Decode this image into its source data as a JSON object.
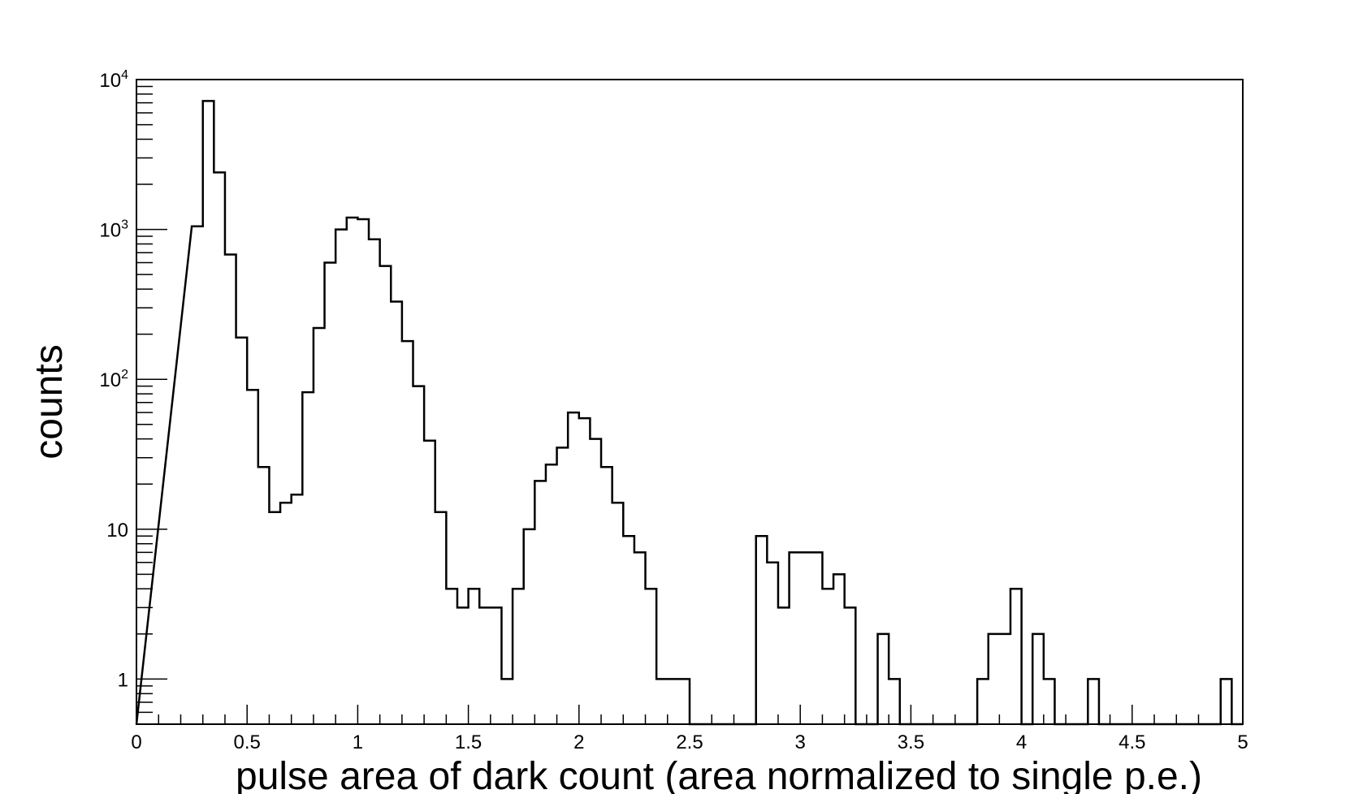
{
  "chart_data": {
    "type": "histogram",
    "xlabel": "pulse area of dark count (area normalized to single p.e.)",
    "ylabel": "counts",
    "xlim": [
      0,
      5
    ],
    "ylim": [
      0.5,
      10000
    ],
    "y_scale": "log",
    "bin_width": 0.05,
    "grid": false,
    "x_tick_labels": [
      "0",
      "0.5",
      "1",
      "1.5",
      "2",
      "2.5",
      "3",
      "3.5",
      "4",
      "4.5",
      "5"
    ],
    "y_ticks": [
      {
        "value": 1,
        "base": "1",
        "exp": ""
      },
      {
        "value": 10,
        "base": "10",
        "exp": ""
      },
      {
        "value": 100,
        "base": "10",
        "exp": "2"
      },
      {
        "value": 1000,
        "base": "10",
        "exp": "3"
      },
      {
        "value": 10000,
        "base": "10",
        "exp": "4"
      }
    ],
    "bins": [
      {
        "x": 0.25,
        "y": 1050
      },
      {
        "x": 0.3,
        "y": 7200
      },
      {
        "x": 0.35,
        "y": 2400
      },
      {
        "x": 0.4,
        "y": 680
      },
      {
        "x": 0.45,
        "y": 190
      },
      {
        "x": 0.5,
        "y": 85
      },
      {
        "x": 0.55,
        "y": 26
      },
      {
        "x": 0.6,
        "y": 13
      },
      {
        "x": 0.65,
        "y": 15
      },
      {
        "x": 0.7,
        "y": 17
      },
      {
        "x": 0.75,
        "y": 82
      },
      {
        "x": 0.8,
        "y": 220
      },
      {
        "x": 0.85,
        "y": 600
      },
      {
        "x": 0.9,
        "y": 1000
      },
      {
        "x": 0.95,
        "y": 1200
      },
      {
        "x": 1.0,
        "y": 1170
      },
      {
        "x": 1.05,
        "y": 860
      },
      {
        "x": 1.1,
        "y": 570
      },
      {
        "x": 1.15,
        "y": 330
      },
      {
        "x": 1.2,
        "y": 180
      },
      {
        "x": 1.25,
        "y": 90
      },
      {
        "x": 1.3,
        "y": 39
      },
      {
        "x": 1.35,
        "y": 13
      },
      {
        "x": 1.4,
        "y": 4
      },
      {
        "x": 1.45,
        "y": 3
      },
      {
        "x": 1.5,
        "y": 4
      },
      {
        "x": 1.55,
        "y": 3
      },
      {
        "x": 1.6,
        "y": 3
      },
      {
        "x": 1.65,
        "y": 1
      },
      {
        "x": 1.7,
        "y": 4
      },
      {
        "x": 1.75,
        "y": 10
      },
      {
        "x": 1.8,
        "y": 21
      },
      {
        "x": 1.85,
        "y": 27
      },
      {
        "x": 1.9,
        "y": 35
      },
      {
        "x": 1.95,
        "y": 60
      },
      {
        "x": 2.0,
        "y": 55
      },
      {
        "x": 2.05,
        "y": 40
      },
      {
        "x": 2.1,
        "y": 26
      },
      {
        "x": 2.15,
        "y": 15
      },
      {
        "x": 2.2,
        "y": 9
      },
      {
        "x": 2.25,
        "y": 7
      },
      {
        "x": 2.3,
        "y": 4
      },
      {
        "x": 2.35,
        "y": 1
      },
      {
        "x": 2.4,
        "y": 1
      },
      {
        "x": 2.45,
        "y": 1
      },
      {
        "x": 2.5,
        "y": 0
      },
      {
        "x": 2.55,
        "y": 0
      },
      {
        "x": 2.6,
        "y": 0
      },
      {
        "x": 2.65,
        "y": 0
      },
      {
        "x": 2.7,
        "y": 0
      },
      {
        "x": 2.75,
        "y": 0
      },
      {
        "x": 2.8,
        "y": 9
      },
      {
        "x": 2.85,
        "y": 6
      },
      {
        "x": 2.9,
        "y": 3
      },
      {
        "x": 2.95,
        "y": 7
      },
      {
        "x": 3.0,
        "y": 7
      },
      {
        "x": 3.05,
        "y": 7
      },
      {
        "x": 3.1,
        "y": 4
      },
      {
        "x": 3.15,
        "y": 5
      },
      {
        "x": 3.2,
        "y": 3
      },
      {
        "x": 3.25,
        "y": 0
      },
      {
        "x": 3.3,
        "y": 0
      },
      {
        "x": 3.35,
        "y": 2
      },
      {
        "x": 3.4,
        "y": 1
      },
      {
        "x": 3.45,
        "y": 0
      },
      {
        "x": 3.5,
        "y": 0
      },
      {
        "x": 3.55,
        "y": 0
      },
      {
        "x": 3.6,
        "y": 0
      },
      {
        "x": 3.65,
        "y": 0
      },
      {
        "x": 3.7,
        "y": 0
      },
      {
        "x": 3.75,
        "y": 0
      },
      {
        "x": 3.8,
        "y": 1
      },
      {
        "x": 3.85,
        "y": 2
      },
      {
        "x": 3.9,
        "y": 2
      },
      {
        "x": 3.95,
        "y": 4
      },
      {
        "x": 4.0,
        "y": 0
      },
      {
        "x": 4.05,
        "y": 2
      },
      {
        "x": 4.1,
        "y": 1
      },
      {
        "x": 4.15,
        "y": 0
      },
      {
        "x": 4.2,
        "y": 0
      },
      {
        "x": 4.25,
        "y": 0
      },
      {
        "x": 4.3,
        "y": 1
      },
      {
        "x": 4.35,
        "y": 0
      },
      {
        "x": 4.4,
        "y": 0
      },
      {
        "x": 4.45,
        "y": 0
      },
      {
        "x": 4.5,
        "y": 0
      },
      {
        "x": 4.55,
        "y": 0
      },
      {
        "x": 4.6,
        "y": 0
      },
      {
        "x": 4.65,
        "y": 0
      },
      {
        "x": 4.7,
        "y": 0
      },
      {
        "x": 4.75,
        "y": 0
      },
      {
        "x": 4.8,
        "y": 0
      },
      {
        "x": 4.85,
        "y": 0
      },
      {
        "x": 4.9,
        "y": 1
      },
      {
        "x": 4.95,
        "y": 0
      }
    ]
  }
}
